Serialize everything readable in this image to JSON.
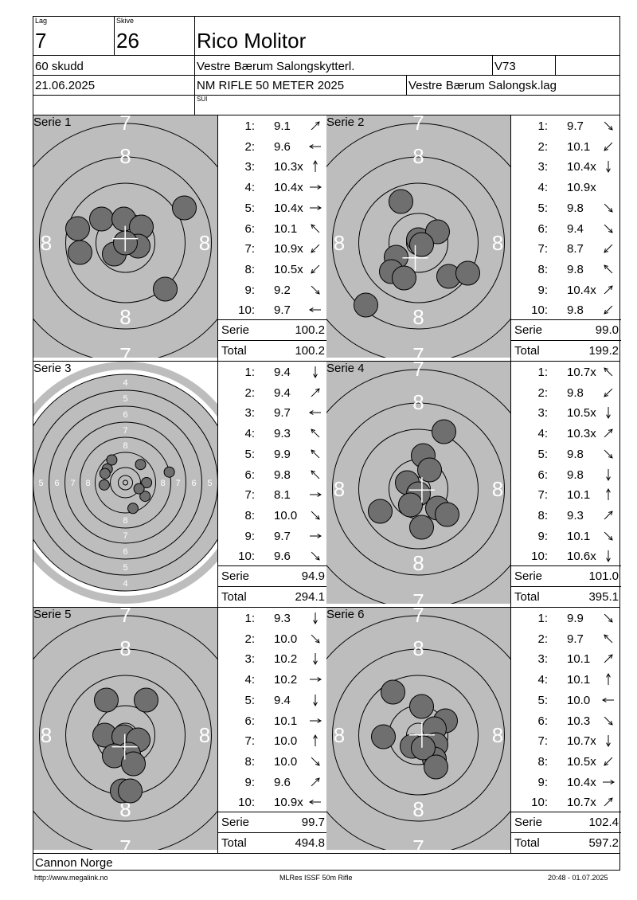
{
  "header": {
    "lag_label": "Lag",
    "lag_value": "7",
    "skive_label": "Skive",
    "skive_value": "26",
    "shooter_name": "Rico Molitor",
    "shots": "60 skudd",
    "club": "Vestre Bærum Salongskytterl.",
    "class": "V73",
    "date": "21.06.2025",
    "competition": "NM RIFLE 50 METER 2025",
    "team": "Vestre Bærum Salongsk.lag",
    "sub_code": "SUI"
  },
  "labels": {
    "serie": "Serie",
    "total": "Total"
  },
  "series": [
    {
      "name": "Serie 1",
      "serie_sum": "100.2",
      "total": "100.2",
      "target_type": "zoom",
      "shots": [
        {
          "n": "1:",
          "v": "9.1",
          "dir": "ne"
        },
        {
          "n": "2:",
          "v": "9.6",
          "dir": "w"
        },
        {
          "n": "3:",
          "v": "10.3x",
          "dir": "n"
        },
        {
          "n": "4:",
          "v": "10.4x",
          "dir": "e"
        },
        {
          "n": "5:",
          "v": "10.4x",
          "dir": "e"
        },
        {
          "n": "6:",
          "v": "10.1",
          "dir": "nw"
        },
        {
          "n": "7:",
          "v": "10.9x",
          "dir": "sw"
        },
        {
          "n": "8:",
          "v": "10.5x",
          "dir": "sw"
        },
        {
          "n": "9:",
          "v": "9.2",
          "dir": "se"
        },
        {
          "n": "10:",
          "v": "9.7",
          "dir": "w"
        }
      ]
    },
    {
      "name": "Serie 2",
      "serie_sum": "99.0",
      "total": "199.2",
      "target_type": "zoom",
      "shots": [
        {
          "n": "1:",
          "v": "9.7",
          "dir": "se"
        },
        {
          "n": "2:",
          "v": "10.1",
          "dir": "sw"
        },
        {
          "n": "3:",
          "v": "10.4x",
          "dir": "s"
        },
        {
          "n": "4:",
          "v": "10.9x",
          "dir": ""
        },
        {
          "n": "5:",
          "v": "9.8",
          "dir": "se"
        },
        {
          "n": "6:",
          "v": "9.4",
          "dir": "se"
        },
        {
          "n": "7:",
          "v": "8.7",
          "dir": "sw"
        },
        {
          "n": "8:",
          "v": "9.8",
          "dir": "nw"
        },
        {
          "n": "9:",
          "v": "10.4x",
          "dir": "ne"
        },
        {
          "n": "10:",
          "v": "9.8",
          "dir": "sw"
        }
      ]
    },
    {
      "name": "Serie 3",
      "serie_sum": "94.9",
      "total": "294.1",
      "target_type": "full",
      "shots": [
        {
          "n": "1:",
          "v": "9.4",
          "dir": "s"
        },
        {
          "n": "2:",
          "v": "9.4",
          "dir": "ne"
        },
        {
          "n": "3:",
          "v": "9.7",
          "dir": "w"
        },
        {
          "n": "4:",
          "v": "9.3",
          "dir": "nw"
        },
        {
          "n": "5:",
          "v": "9.9",
          "dir": "nw"
        },
        {
          "n": "6:",
          "v": "9.8",
          "dir": "nw"
        },
        {
          "n": "7:",
          "v": "8.1",
          "dir": "e"
        },
        {
          "n": "8:",
          "v": "10.0",
          "dir": "se"
        },
        {
          "n": "9:",
          "v": "9.7",
          "dir": "e"
        },
        {
          "n": "10:",
          "v": "9.6",
          "dir": "se"
        }
      ]
    },
    {
      "name": "Serie 4",
      "serie_sum": "101.0",
      "total": "395.1",
      "target_type": "zoom",
      "shots": [
        {
          "n": "1:",
          "v": "10.7x",
          "dir": "nw"
        },
        {
          "n": "2:",
          "v": "9.8",
          "dir": "sw"
        },
        {
          "n": "3:",
          "v": "10.5x",
          "dir": "s"
        },
        {
          "n": "4:",
          "v": "10.3x",
          "dir": "ne"
        },
        {
          "n": "5:",
          "v": "9.8",
          "dir": "se"
        },
        {
          "n": "6:",
          "v": "9.8",
          "dir": "s"
        },
        {
          "n": "7:",
          "v": "10.1",
          "dir": "n"
        },
        {
          "n": "8:",
          "v": "9.3",
          "dir": "ne"
        },
        {
          "n": "9:",
          "v": "10.1",
          "dir": "se"
        },
        {
          "n": "10:",
          "v": "10.6x",
          "dir": "s"
        }
      ]
    },
    {
      "name": "Serie 5",
      "serie_sum": "99.7",
      "total": "494.8",
      "target_type": "zoom",
      "shots": [
        {
          "n": "1:",
          "v": "9.3",
          "dir": "s"
        },
        {
          "n": "2:",
          "v": "10.0",
          "dir": "se"
        },
        {
          "n": "3:",
          "v": "10.2",
          "dir": "s"
        },
        {
          "n": "4:",
          "v": "10.2",
          "dir": "e"
        },
        {
          "n": "5:",
          "v": "9.4",
          "dir": "s"
        },
        {
          "n": "6:",
          "v": "10.1",
          "dir": "e"
        },
        {
          "n": "7:",
          "v": "10.0",
          "dir": "n"
        },
        {
          "n": "8:",
          "v": "10.0",
          "dir": "se"
        },
        {
          "n": "9:",
          "v": "9.6",
          "dir": "ne"
        },
        {
          "n": "10:",
          "v": "10.9x",
          "dir": "w"
        }
      ]
    },
    {
      "name": "Serie 6",
      "serie_sum": "102.4",
      "total": "597.2",
      "target_type": "zoom",
      "shots": [
        {
          "n": "1:",
          "v": "9.9",
          "dir": "se"
        },
        {
          "n": "2:",
          "v": "9.7",
          "dir": "nw"
        },
        {
          "n": "3:",
          "v": "10.1",
          "dir": "ne"
        },
        {
          "n": "4:",
          "v": "10.1",
          "dir": "n"
        },
        {
          "n": "5:",
          "v": "10.0",
          "dir": "w"
        },
        {
          "n": "6:",
          "v": "10.3",
          "dir": "se"
        },
        {
          "n": "7:",
          "v": "10.7x",
          "dir": "s"
        },
        {
          "n": "8:",
          "v": "10.5x",
          "dir": "sw"
        },
        {
          "n": "9:",
          "v": "10.4x",
          "dir": "e"
        },
        {
          "n": "10:",
          "v": "10.7x",
          "dir": "ne"
        }
      ]
    }
  ],
  "zoom_ring_labels": {
    "outer": "7",
    "inner": "8"
  },
  "full_ring_labels": [
    "4",
    "5",
    "6",
    "7",
    "8"
  ],
  "sponsor": "Cannon Norge",
  "footer": {
    "url": "http://www.megalink.no",
    "program": "MLRes ISSF 50m Rifle",
    "printed": "20:48 - 01.07.2025"
  },
  "colors": {
    "target_gray": "#bdbdbd",
    "hole_fill": "#6f6f6f",
    "ring": "#000000"
  }
}
